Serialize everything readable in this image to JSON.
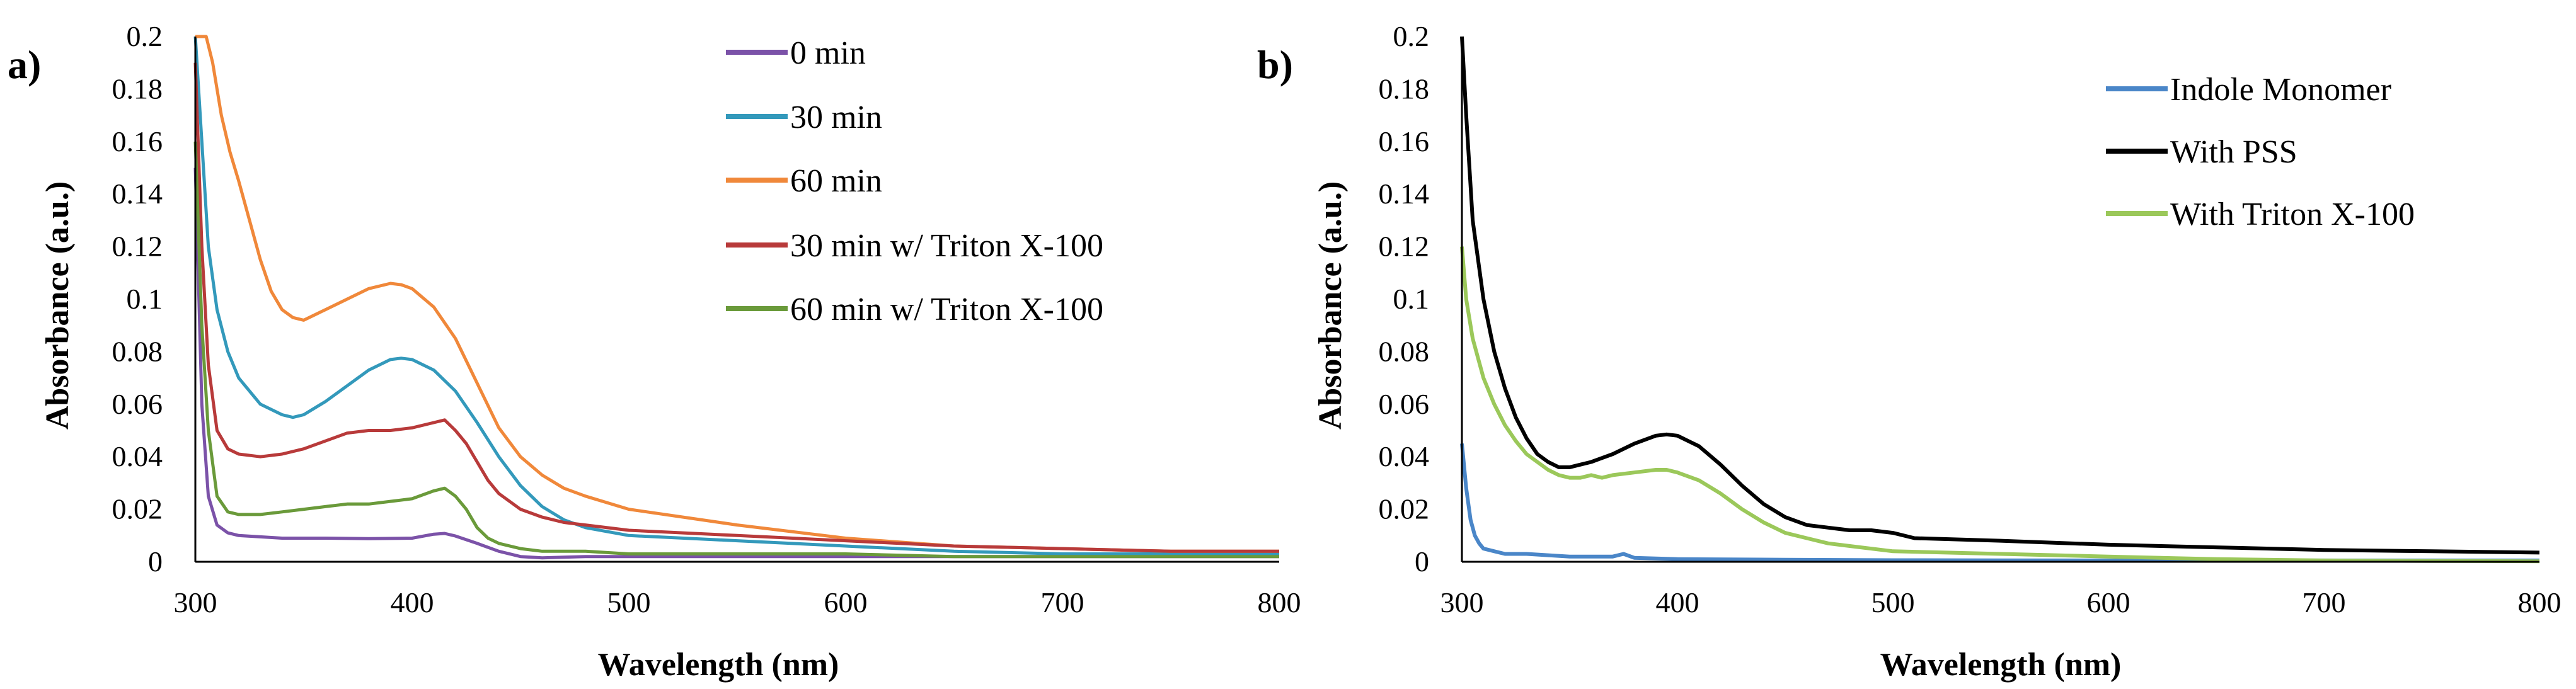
{
  "chart_data": [
    {
      "type": "line",
      "panel_label": "a)",
      "title": "",
      "xlabel": "Wavelength (nm)",
      "ylabel": "Absorbance (a.u.)",
      "xlim": [
        300,
        800
      ],
      "ylim": [
        0,
        0.2
      ],
      "xticks": [
        "300",
        "400",
        "500",
        "600",
        "700",
        "800"
      ],
      "yticks": [
        "0",
        "0.02",
        "0.04",
        "0.06",
        "0.08",
        "0.1",
        "0.12",
        "0.14",
        "0.16",
        "0.18",
        "0.2"
      ],
      "grid": false,
      "legend": "top-center",
      "series": [
        {
          "name": "0 min",
          "color": "#7b52a8",
          "x": [
            300,
            303,
            306,
            310,
            315,
            320,
            330,
            340,
            360,
            380,
            400,
            410,
            415,
            420,
            430,
            440,
            450,
            460,
            480,
            500,
            550,
            600,
            650,
            700,
            750,
            800
          ],
          "y": [
            0.15,
            0.06,
            0.025,
            0.014,
            0.011,
            0.01,
            0.0095,
            0.009,
            0.009,
            0.0088,
            0.009,
            0.0105,
            0.0108,
            0.0098,
            0.007,
            0.004,
            0.002,
            0.0015,
            0.002,
            0.002,
            0.002,
            0.002,
            0.002,
            0.002,
            0.002,
            0.002
          ]
        },
        {
          "name": "30 min",
          "color": "#3399bb",
          "x": [
            300,
            303,
            306,
            310,
            315,
            320,
            330,
            340,
            345,
            350,
            360,
            370,
            380,
            390,
            395,
            400,
            410,
            420,
            430,
            440,
            450,
            460,
            470,
            480,
            500,
            550,
            600,
            650,
            700,
            750,
            800
          ],
          "y": [
            0.2,
            0.16,
            0.12,
            0.096,
            0.08,
            0.07,
            0.06,
            0.056,
            0.055,
            0.056,
            0.061,
            0.067,
            0.073,
            0.077,
            0.0775,
            0.077,
            0.073,
            0.065,
            0.053,
            0.04,
            0.029,
            0.021,
            0.016,
            0.013,
            0.01,
            0.008,
            0.006,
            0.004,
            0.003,
            0.003,
            0.003
          ]
        },
        {
          "name": "60 min",
          "color": "#f0883a",
          "x": [
            300,
            305,
            308,
            312,
            316,
            320,
            325,
            330,
            335,
            340,
            345,
            350,
            360,
            370,
            380,
            390,
            395,
            400,
            410,
            420,
            430,
            440,
            450,
            460,
            470,
            480,
            500,
            550,
            600,
            650,
            700,
            750,
            800
          ],
          "y": [
            0.2,
            0.2,
            0.19,
            0.17,
            0.156,
            0.145,
            0.13,
            0.115,
            0.103,
            0.096,
            0.093,
            0.092,
            0.096,
            0.1,
            0.104,
            0.106,
            0.1055,
            0.104,
            0.097,
            0.085,
            0.068,
            0.051,
            0.04,
            0.033,
            0.028,
            0.025,
            0.02,
            0.014,
            0.009,
            0.006,
            0.005,
            0.004,
            0.004
          ]
        },
        {
          "name": "30 min w/ Triton X-100",
          "color": "#b83a3a",
          "x": [
            300,
            303,
            306,
            310,
            315,
            320,
            330,
            340,
            350,
            360,
            370,
            380,
            390,
            400,
            410,
            415,
            420,
            425,
            430,
            435,
            440,
            450,
            460,
            470,
            480,
            500,
            550,
            600,
            650,
            700,
            750,
            800
          ],
          "y": [
            0.19,
            0.12,
            0.075,
            0.05,
            0.043,
            0.041,
            0.04,
            0.041,
            0.043,
            0.046,
            0.049,
            0.05,
            0.05,
            0.051,
            0.053,
            0.054,
            0.05,
            0.045,
            0.038,
            0.031,
            0.026,
            0.02,
            0.017,
            0.015,
            0.014,
            0.012,
            0.01,
            0.008,
            0.006,
            0.005,
            0.004,
            0.004
          ]
        },
        {
          "name": "60 min w/ Triton X-100",
          "color": "#6a9a3a",
          "x": [
            300,
            303,
            306,
            310,
            315,
            320,
            330,
            340,
            350,
            360,
            370,
            380,
            390,
            400,
            410,
            415,
            420,
            425,
            430,
            435,
            440,
            450,
            460,
            470,
            480,
            500,
            550,
            600,
            650,
            700,
            750,
            800
          ],
          "y": [
            0.16,
            0.09,
            0.05,
            0.025,
            0.019,
            0.018,
            0.018,
            0.019,
            0.02,
            0.021,
            0.022,
            0.022,
            0.023,
            0.024,
            0.027,
            0.028,
            0.025,
            0.02,
            0.013,
            0.009,
            0.007,
            0.005,
            0.004,
            0.004,
            0.004,
            0.003,
            0.003,
            0.003,
            0.002,
            0.002,
            0.002,
            0.002
          ]
        }
      ]
    },
    {
      "type": "line",
      "panel_label": "b)",
      "title": "",
      "xlabel": "Wavelength (nm)",
      "ylabel": "Absorbance (a.u.)",
      "xlim": [
        300,
        800
      ],
      "ylim": [
        0,
        0.2
      ],
      "xticks": [
        "300",
        "400",
        "500",
        "600",
        "700",
        "800"
      ],
      "yticks": [
        "0",
        "0.02",
        "0.04",
        "0.06",
        "0.08",
        "0.1",
        "0.12",
        "0.14",
        "0.16",
        "0.18",
        "0.2"
      ],
      "grid": false,
      "legend": "top-right",
      "series": [
        {
          "name": "Indole Monomer",
          "color": "#4a86c8",
          "x": [
            300,
            302,
            304,
            306,
            308,
            310,
            315,
            320,
            330,
            340,
            350,
            360,
            370,
            375,
            380,
            400,
            450,
            500,
            600,
            700,
            800
          ],
          "y": [
            0.045,
            0.028,
            0.016,
            0.01,
            0.007,
            0.005,
            0.004,
            0.003,
            0.003,
            0.0025,
            0.002,
            0.002,
            0.002,
            0.003,
            0.0015,
            0.001,
            0.0008,
            0.0006,
            0.0005,
            0.0005,
            0.0005
          ]
        },
        {
          "name": "With PSS",
          "color": "#000000",
          "x": [
            300,
            302,
            305,
            310,
            315,
            320,
            325,
            330,
            335,
            340,
            345,
            350,
            355,
            360,
            370,
            380,
            390,
            395,
            400,
            405,
            410,
            420,
            430,
            440,
            450,
            460,
            470,
            480,
            490,
            500,
            510,
            550,
            600,
            650,
            700,
            750,
            800
          ],
          "y": [
            0.2,
            0.17,
            0.13,
            0.1,
            0.08,
            0.066,
            0.055,
            0.047,
            0.041,
            0.038,
            0.036,
            0.036,
            0.037,
            0.038,
            0.041,
            0.045,
            0.048,
            0.0485,
            0.048,
            0.046,
            0.044,
            0.037,
            0.029,
            0.022,
            0.017,
            0.014,
            0.013,
            0.012,
            0.012,
            0.011,
            0.009,
            0.008,
            0.0065,
            0.0055,
            0.0045,
            0.004,
            0.0035
          ]
        },
        {
          "name": "With Triton X-100",
          "color": "#9bc85a",
          "x": [
            300,
            302,
            305,
            310,
            315,
            320,
            325,
            330,
            335,
            340,
            345,
            350,
            355,
            360,
            365,
            370,
            380,
            390,
            395,
            400,
            410,
            420,
            430,
            440,
            450,
            460,
            470,
            480,
            500,
            550,
            600,
            650,
            700,
            750,
            800
          ],
          "y": [
            0.12,
            0.1,
            0.085,
            0.07,
            0.06,
            0.052,
            0.046,
            0.041,
            0.038,
            0.035,
            0.033,
            0.032,
            0.032,
            0.033,
            0.032,
            0.033,
            0.034,
            0.035,
            0.035,
            0.034,
            0.031,
            0.026,
            0.02,
            0.015,
            0.011,
            0.009,
            0.007,
            0.006,
            0.004,
            0.003,
            0.002,
            0.001,
            0.0005,
            0.0003,
            0.0002
          ]
        }
      ]
    }
  ]
}
